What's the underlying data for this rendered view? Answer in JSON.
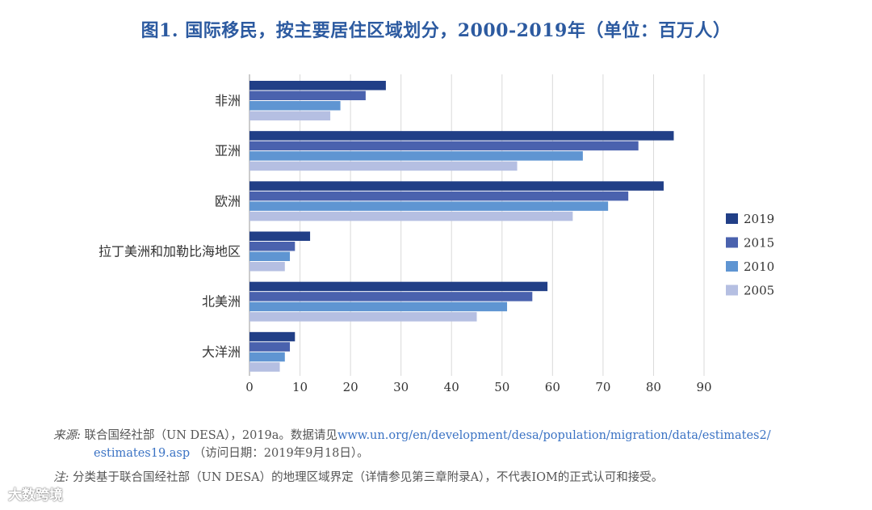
{
  "title": "图1. 国际移民，按主要居住区域划分，2000-2019年（单位：百万人）",
  "chart_data": {
    "type": "bar",
    "orientation": "horizontal",
    "categories": [
      "非洲",
      "亚洲",
      "欧洲",
      "拉丁美洲和加勒比海地区",
      "北美洲",
      "大洋洲"
    ],
    "series": [
      {
        "name": "2019",
        "color": "#213f87",
        "values": [
          27,
          84,
          82,
          12,
          59,
          9
        ]
      },
      {
        "name": "2015",
        "color": "#4a62ae",
        "values": [
          23,
          77,
          75,
          9,
          56,
          8
        ]
      },
      {
        "name": "2010",
        "color": "#5f95d2",
        "values": [
          18,
          66,
          71,
          8,
          51,
          7
        ]
      },
      {
        "name": "2005",
        "color": "#b5bfe2",
        "values": [
          16,
          53,
          64,
          7,
          45,
          6
        ]
      }
    ],
    "xlim": [
      0,
      90
    ],
    "xticks": [
      "0",
      "10",
      "20",
      "30",
      "40",
      "50",
      "60",
      "70",
      "80",
      "90"
    ],
    "grid": true,
    "legend_position": "right"
  },
  "notes": {
    "source_label": "来源:",
    "source_text": "联合国经社部（UN DESA），2019a。数据请见",
    "source_link_1": "www.un.org/en/development/desa/population/migration/data/estimates2/",
    "source_link_2": "estimates19.asp",
    "source_tail": "（访问日期：2019年9月18日）。",
    "note_label": "注:",
    "note_text": "分类基于联合国经社部（UN DESA）的地理区域界定（详情参见第三章附录A），不代表IOM的正式认可和接受。"
  },
  "watermark": "大数跨境"
}
